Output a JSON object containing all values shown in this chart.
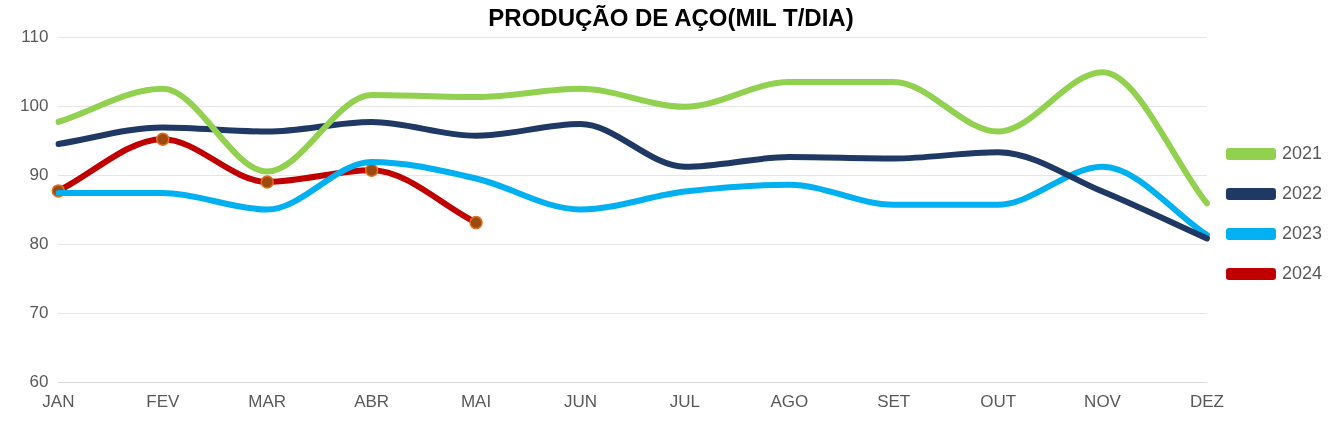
{
  "chart_data": {
    "type": "line",
    "title": "PRODUÇÃO DE AÇO(MIL T/DIA)",
    "categories": [
      "JAN",
      "FEV",
      "MAR",
      "ABR",
      "MAI",
      "JUN",
      "JUL",
      "AGO",
      "SET",
      "OUT",
      "NOV",
      "DEZ"
    ],
    "series": [
      {
        "name": "2021",
        "color": "#92d050",
        "marker": "none",
        "values": [
          97.8,
          102.6,
          90.6,
          101.7,
          101.4,
          102.6,
          100,
          103.6,
          103.6,
          96.4,
          105,
          86
        ]
      },
      {
        "name": "2022",
        "color": "#1f3864",
        "marker": "none",
        "values": [
          94.6,
          97,
          96.4,
          97.8,
          95.8,
          97.5,
          91.3,
          92.7,
          92.5,
          93.4,
          87.7,
          80.9
        ]
      },
      {
        "name": "2023",
        "color": "#00b0f0",
        "marker": "none",
        "values": [
          87.5,
          87.5,
          85.1,
          92,
          89.6,
          85.1,
          87.7,
          88.7,
          85.8,
          85.8,
          91.3,
          81.4
        ]
      },
      {
        "name": "2024",
        "color": "#c00000",
        "marker": "circle",
        "values": [
          87.8,
          95.3,
          89.1,
          90.8,
          83.2,
          null,
          null,
          null,
          null,
          null,
          null,
          null
        ]
      }
    ],
    "ylim": [
      60,
      110
    ],
    "yticks": [
      60,
      70,
      80,
      90,
      100,
      110
    ],
    "grid": "y",
    "legend": "right"
  }
}
